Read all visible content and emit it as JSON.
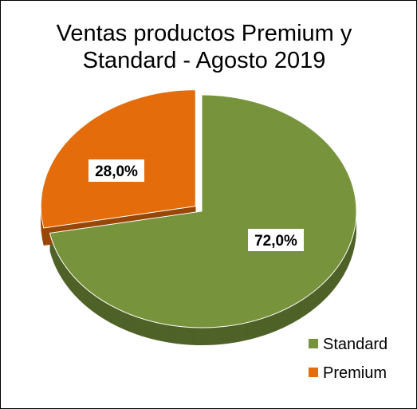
{
  "chart_data": {
    "type": "pie",
    "title": "Ventas productos Premium y Standard - Agosto 2019",
    "categories": [
      "Standard",
      "Premium"
    ],
    "values": [
      72,
      28
    ],
    "value_labels": [
      "72,0%",
      "28,0%"
    ],
    "colors": [
      "#77933c",
      "#e46c0a"
    ],
    "side_colors": [
      "#4f6228",
      "#984807"
    ],
    "legend": "right"
  }
}
